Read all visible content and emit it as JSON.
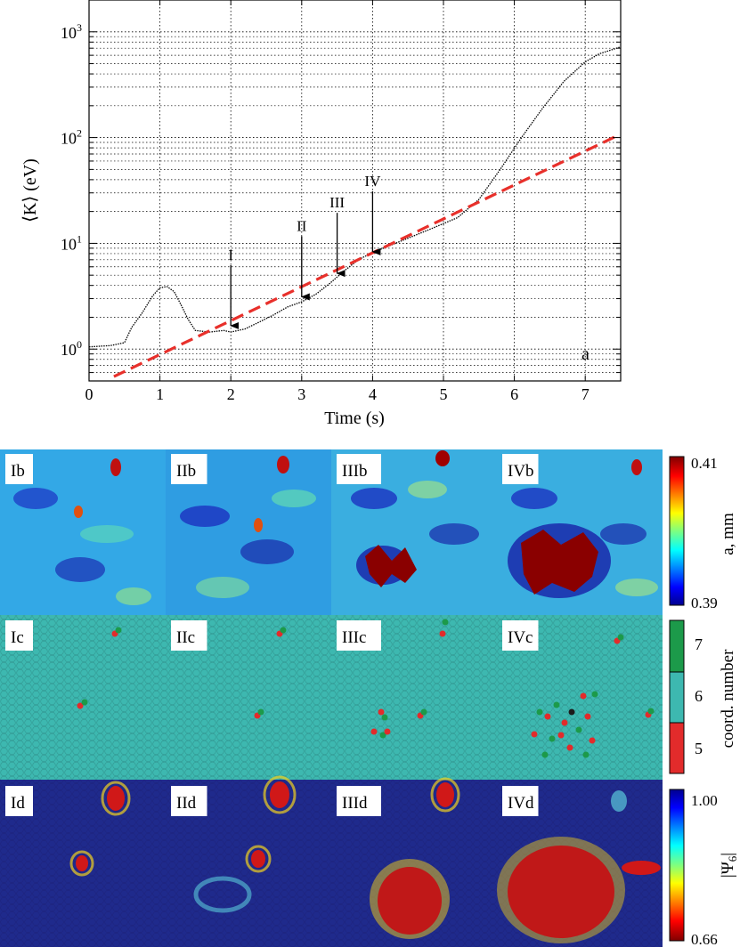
{
  "chart_data": [
    {
      "type": "line",
      "panel_label": "a",
      "xlabel": "Time (s)",
      "ylabel": "⟨K⟩ (eV)",
      "yscale": "log",
      "xlim": [
        0,
        7.5
      ],
      "ylim": [
        0.5,
        2000
      ],
      "grid": true,
      "x_ticks": [
        "0",
        "1",
        "2",
        "3",
        "4",
        "5",
        "6",
        "7"
      ],
      "y_ticks": [
        {
          "base": "10",
          "exp": "0",
          "value": 1
        },
        {
          "base": "10",
          "exp": "1",
          "value": 10
        },
        {
          "base": "10",
          "exp": "2",
          "value": 100
        },
        {
          "base": "10",
          "exp": "3",
          "value": 1000
        }
      ],
      "series": [
        {
          "style": "black dotted",
          "color": "#000000",
          "x": [
            0,
            0.3,
            0.5,
            0.6,
            0.75,
            0.9,
            1.0,
            1.1,
            1.2,
            1.3,
            1.4,
            1.5,
            1.7,
            1.9,
            2.0,
            2.2,
            2.4,
            2.6,
            2.8,
            3.0,
            3.2,
            3.4,
            3.6,
            3.8,
            4.0,
            4.4,
            4.8,
            5.2,
            5.5,
            5.8,
            6.1,
            6.4,
            6.7,
            7.0,
            7.2,
            7.5
          ],
          "y": [
            1.05,
            1.08,
            1.15,
            1.6,
            2.2,
            3.2,
            3.8,
            3.9,
            3.5,
            2.6,
            1.9,
            1.5,
            1.45,
            1.5,
            1.45,
            1.55,
            1.8,
            2.1,
            2.5,
            2.8,
            3.3,
            4.2,
            5.5,
            7.0,
            8.2,
            10.5,
            13.5,
            17.5,
            26,
            50,
            100,
            190,
            340,
            520,
            620,
            720
          ]
        },
        {
          "style": "red dashed fit",
          "color": "#e8302b",
          "x": [
            0.35,
            7.45
          ],
          "y": [
            0.55,
            104
          ]
        }
      ],
      "annotations": [
        {
          "label": "I",
          "x": 2.0,
          "y": 1.6
        },
        {
          "label": "II",
          "x": 3.0,
          "y": 3.0
        },
        {
          "label": "III",
          "x": 3.5,
          "y": 5.0
        },
        {
          "label": "IV",
          "x": 4.0,
          "y": 8.0
        }
      ]
    },
    {
      "type": "heatmap",
      "quantity": "a",
      "panel_labels": [
        "Ib",
        "IIb",
        "IIIb",
        "IVb"
      ],
      "colorbar": {
        "label": "a, mm",
        "max": "0.41",
        "min": "0.39"
      }
    },
    {
      "type": "heatmap",
      "quantity": "coordination number",
      "panel_labels": [
        "Ic",
        "IIc",
        "IIIc",
        "IVc"
      ],
      "colorbar": {
        "label": "coord. number",
        "ticks": [
          "7",
          "6",
          "5"
        ],
        "colors": [
          "#1c9a4a",
          "#3db8b0",
          "#e22b2b"
        ]
      }
    },
    {
      "type": "heatmap",
      "quantity": "|Ψ6|",
      "panel_labels": [
        "Id",
        "IId",
        "IIId",
        "IVd"
      ],
      "colorbar": {
        "label": "|Ψ6|",
        "max": "1.00",
        "min": "0.66"
      }
    }
  ]
}
